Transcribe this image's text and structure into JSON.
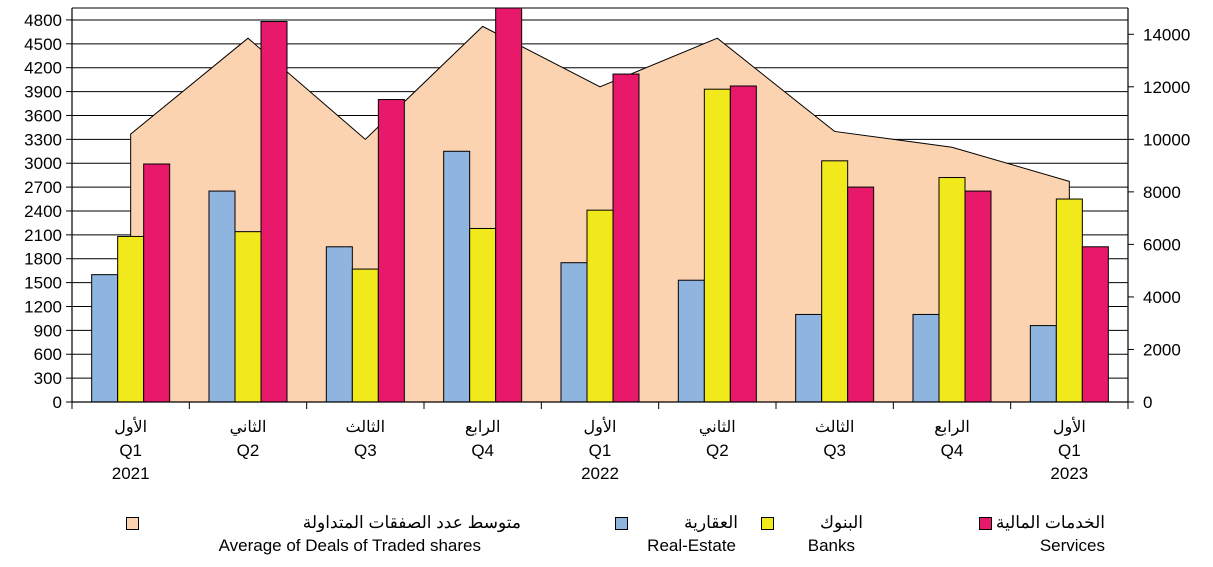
{
  "chart_data": {
    "type": "bar",
    "categories": [
      {
        "ar": "الأول",
        "q": "Q1",
        "year": "2021"
      },
      {
        "ar": "الثاني",
        "q": "Q2",
        "year": ""
      },
      {
        "ar": "الثالث",
        "q": "Q3",
        "year": ""
      },
      {
        "ar": "الرابع",
        "q": "Q4",
        "year": ""
      },
      {
        "ar": "الأول",
        "q": "Q1",
        "year": "2022"
      },
      {
        "ar": "الثاني",
        "q": "Q2",
        "year": ""
      },
      {
        "ar": "الثالث",
        "q": "Q3",
        "year": ""
      },
      {
        "ar": "الرابع",
        "q": "Q4",
        "year": ""
      },
      {
        "ar": "الأول",
        "q": "Q1",
        "year": "2023"
      }
    ],
    "series": [
      {
        "key": "real_estate",
        "name_ar": "العقارية",
        "name": "Real-Estate",
        "color": "#8eb4df",
        "axis": "left",
        "values": [
          1600,
          2650,
          1950,
          3150,
          1750,
          1530,
          1100,
          1100,
          960
        ]
      },
      {
        "key": "banks",
        "name_ar": "البنوك",
        "name": "Banks",
        "color": "#f1e91b",
        "axis": "left",
        "values": [
          2080,
          2140,
          1670,
          2180,
          2410,
          3930,
          3030,
          2820,
          2550
        ]
      },
      {
        "key": "services",
        "name_ar": "الخدمات المالية",
        "name": "Services",
        "color": "#e8186a",
        "axis": "left",
        "values": [
          2990,
          4780,
          3800,
          4950,
          4120,
          3970,
          2700,
          2650,
          1950
        ]
      }
    ],
    "area_series": {
      "key": "avg_deals",
      "name_ar": "متوسط عدد الصفقات المتداولة",
      "name": "Average of Deals of Traded shares",
      "color": "#fcd3b0",
      "axis": "right",
      "values": [
        10200,
        13850,
        10000,
        14300,
        12000,
        13850,
        10300,
        9700,
        8400
      ]
    },
    "left_axis": {
      "min": 0,
      "max": 4950,
      "ticks": [
        0,
        300,
        600,
        900,
        1200,
        1500,
        1800,
        2100,
        2400,
        2700,
        3000,
        3300,
        3600,
        3900,
        4200,
        4500,
        4800
      ]
    },
    "right_axis": {
      "min": 0,
      "max": 15000,
      "ticks": [
        0,
        2000,
        4000,
        6000,
        8000,
        10000,
        12000,
        14000
      ]
    },
    "grid": true,
    "legend_position": "bottom"
  }
}
